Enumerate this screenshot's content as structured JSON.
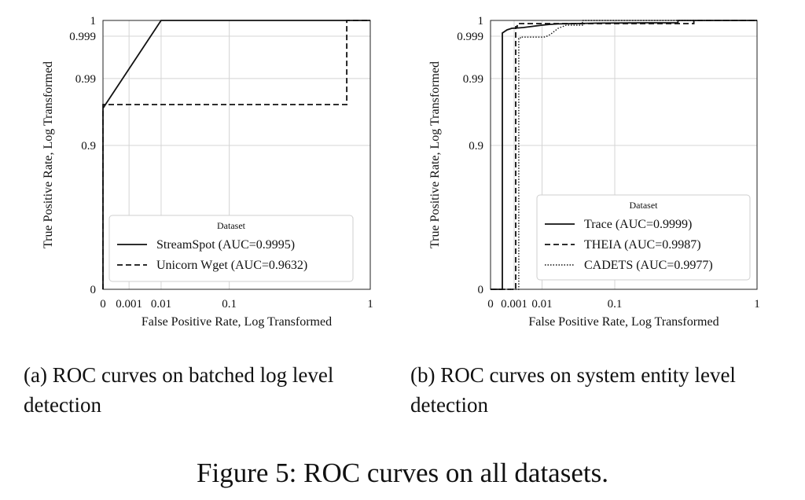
{
  "figure": {
    "title": "Figure 5: ROC curves on all datasets."
  },
  "captions": [
    {
      "label": "(a)",
      "text": "ROC curves on batched log level detection"
    },
    {
      "label": "(b)",
      "text": "ROC curves on system entity level detection"
    }
  ],
  "chart_data": [
    {
      "type": "line",
      "xlabel": "False Positive Rate, Log Transformed",
      "ylabel": "True Positive Rate, Log Transformed",
      "x_ticks": [
        0,
        0.001,
        0.01,
        0.1,
        1
      ],
      "x_tick_labels": [
        "0",
        "0.001",
        "0.01",
        "0.1",
        "1"
      ],
      "y_ticks": [
        0,
        0.9,
        0.99,
        0.999,
        1
      ],
      "y_tick_labels": [
        "0",
        "0.9",
        "0.99",
        "0.999",
        "1"
      ],
      "xlim": [
        0,
        1
      ],
      "ylim": [
        0,
        1
      ],
      "grid": true,
      "legend": {
        "title": "Dataset",
        "placement": "lower-right"
      },
      "series": [
        {
          "name": "StreamSpot (AUC=0.9995)",
          "style": "solid",
          "x": [
            0,
            0,
            0.01,
            1
          ],
          "y": [
            0,
            0.95,
            1,
            1
          ]
        },
        {
          "name": "Unicorn Wget (AUC=0.9632)",
          "style": "dashed",
          "x": [
            0,
            0,
            0.8,
            0.85,
            0.85,
            1
          ],
          "y": [
            0,
            0.955,
            0.955,
            0.955,
            1,
            1
          ]
        }
      ]
    },
    {
      "type": "line",
      "xlabel": "False Positive Rate, Log Transformed",
      "ylabel": "True Positive Rate, Log Transformed",
      "x_ticks": [
        0,
        0.001,
        0.01,
        0.1,
        1
      ],
      "x_tick_labels": [
        "0",
        "0.001",
        "0.01",
        "0.1",
        "1"
      ],
      "y_ticks": [
        0,
        0.9,
        0.99,
        0.999,
        1
      ],
      "y_tick_labels": [
        "0",
        "0.9",
        "0.99",
        "0.999",
        "1"
      ],
      "xlim": [
        0,
        1
      ],
      "ylim": [
        0,
        1
      ],
      "grid": true,
      "legend": {
        "title": "Dataset",
        "placement": "lower-right"
      },
      "series": [
        {
          "name": "Trace (AUC=0.9999)",
          "style": "solid",
          "x": [
            0,
            0.0005,
            0.0005,
            0.0007,
            0.0009,
            0.002,
            0.004,
            0.006,
            0.01,
            0.02,
            0.03,
            0.05,
            0.08,
            0.3,
            0.5,
            0.5,
            1
          ],
          "y": [
            0,
            0,
            0.9992,
            0.9994,
            0.9995,
            0.99952,
            0.99955,
            0.9996,
            0.9997,
            0.99975,
            0.99978,
            0.9998,
            0.99983,
            0.99985,
            0.99985,
            1,
            1
          ]
        },
        {
          "name": "THEIA (AUC=0.9987)",
          "style": "dashed",
          "x": [
            0,
            0.0015,
            0.0015,
            0.002,
            0.002,
            0.6,
            0.6,
            1
          ],
          "y": [
            0,
            0,
            0.9996,
            0.9996,
            0.9998,
            0.9998,
            1,
            1
          ]
        },
        {
          "name": "CADETS (AUC=0.9977)",
          "style": "dotted",
          "x": [
            0,
            0.0025,
            0.0025,
            0.003,
            0.003,
            0.012,
            0.015,
            0.02,
            0.025,
            0.03,
            0.035,
            0.04,
            0.06,
            0.06,
            1
          ],
          "y": [
            0,
            0,
            0.9985,
            0.9985,
            0.9988,
            0.9988,
            0.9989,
            0.9991,
            0.9993,
            0.9995,
            0.9996,
            0.9997,
            0.9997,
            1,
            1
          ]
        }
      ]
    }
  ]
}
